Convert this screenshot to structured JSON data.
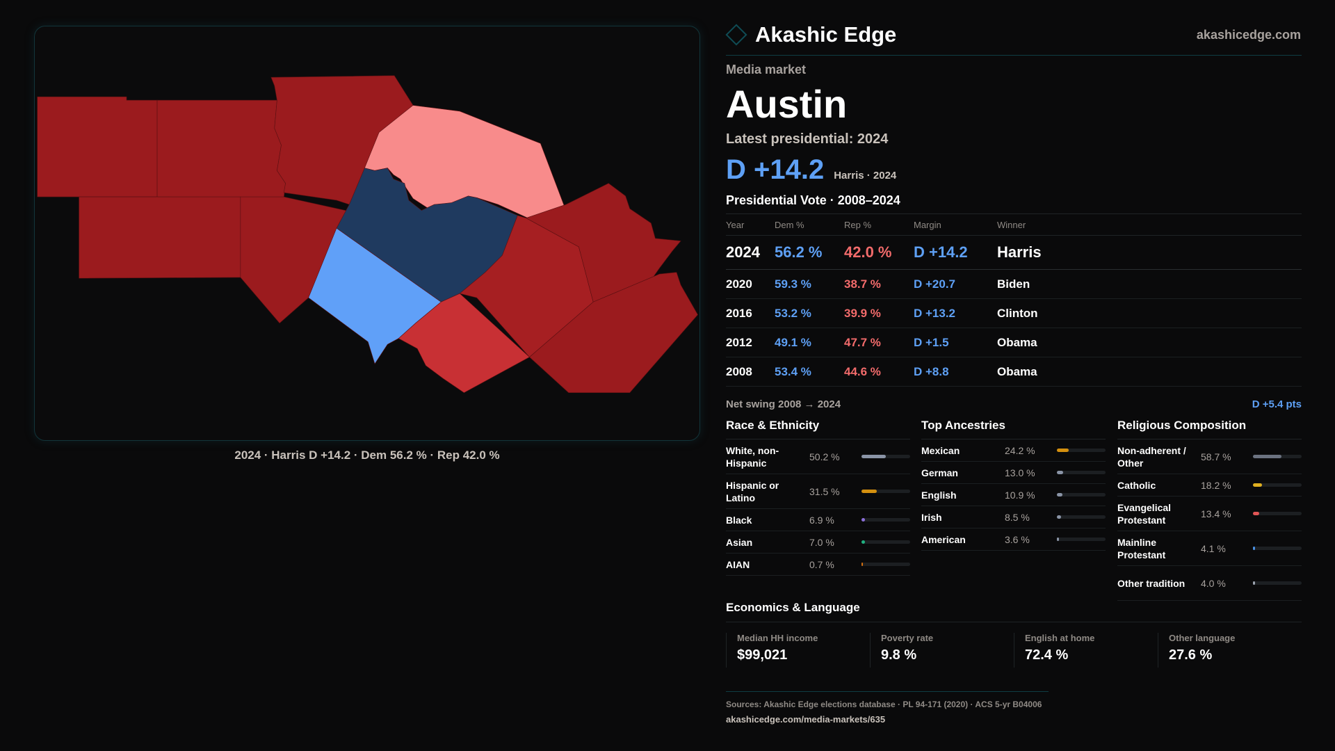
{
  "brand": {
    "name": "Akashic Edge",
    "site": "akashicedge.com",
    "logo_icon": "diamond-icon"
  },
  "header": {
    "kicker": "Media market",
    "title": "Austin",
    "latest": "Latest presidential: 2024",
    "margin": "D +14.2",
    "margin_sub": "Harris · 2024"
  },
  "map": {
    "caption": "2024 · Harris D +14.2 · Dem 56.2 % · Rep 42.0 %",
    "colors": {
      "safe_rep": "#9b1b1e",
      "likely_rep": "#a61f22",
      "lean_rep": "#c83034",
      "tilt_rep": "#f88b8b",
      "safe_dem": "#1f3a5f",
      "likely_dem": "#60a0f8"
    }
  },
  "vote": {
    "title": "Presidential Vote · 2008–2024",
    "columns": [
      "Year",
      "Dem %",
      "Rep %",
      "Margin",
      "Winner"
    ],
    "rows": [
      [
        "2024",
        "56.2 %",
        "42.0 %",
        "D +14.2",
        "Harris"
      ],
      [
        "2020",
        "59.3 %",
        "38.7 %",
        "D +20.7",
        "Biden"
      ],
      [
        "2016",
        "53.2 %",
        "39.9 %",
        "D +13.2",
        "Clinton"
      ],
      [
        "2012",
        "49.1 %",
        "47.7 %",
        "D +1.5",
        "Obama"
      ],
      [
        "2008",
        "53.4 %",
        "44.6 %",
        "D +8.8",
        "Obama"
      ]
    ],
    "swing_label": "Net swing 2008 → 2024",
    "swing_value": "D +5.4 pts"
  },
  "race": {
    "title": "Race & Ethnicity",
    "items": [
      {
        "label": "White, non-Hispanic",
        "pct": "50.2 %",
        "value": 50.2,
        "color": "#8a94a6"
      },
      {
        "label": "Hispanic or Latino",
        "pct": "31.5 %",
        "value": 31.5,
        "color": "#d4900f"
      },
      {
        "label": "Black",
        "pct": "6.9 %",
        "value": 6.9,
        "color": "#8b6fd8"
      },
      {
        "label": "Asian",
        "pct": "7.0 %",
        "value": 7.0,
        "color": "#20b080"
      },
      {
        "label": "AIAN",
        "pct": "0.7 %",
        "value": 0.7,
        "color": "#d4700f"
      }
    ]
  },
  "ancestry": {
    "title": "Top Ancestries",
    "items": [
      {
        "label": "Mexican",
        "pct": "24.2 %",
        "value": 24.2,
        "color": "#d4900f"
      },
      {
        "label": "German",
        "pct": "13.0 %",
        "value": 13.0,
        "color": "#8a94a6"
      },
      {
        "label": "English",
        "pct": "10.9 %",
        "value": 10.9,
        "color": "#8a94a6"
      },
      {
        "label": "Irish",
        "pct": "8.5 %",
        "value": 8.5,
        "color": "#8a94a6"
      },
      {
        "label": "American",
        "pct": "3.6 %",
        "value": 3.6,
        "color": "#8a94a6"
      }
    ]
  },
  "religion": {
    "title": "Religious Composition",
    "items": [
      {
        "label": "Non-adherent / Other",
        "pct": "58.7 %",
        "value": 58.7,
        "color": "#6b7280"
      },
      {
        "label": "Catholic",
        "pct": "18.2 %",
        "value": 18.2,
        "color": "#e0b020"
      },
      {
        "label": "Evangelical Protestant",
        "pct": "13.4 %",
        "value": 13.4,
        "color": "#e05555"
      },
      {
        "label": "Mainline Protestant",
        "pct": "4.1 %",
        "value": 4.1,
        "color": "#4a90e2"
      },
      {
        "label": "Other tradition",
        "pct": "4.0 %",
        "value": 4.0,
        "color": "#9ca3af"
      }
    ]
  },
  "econ": {
    "title": "Economics & Language",
    "stats": [
      {
        "label": "Median HH income",
        "value": "$99,021"
      },
      {
        "label": "Poverty rate",
        "value": "9.8 %"
      },
      {
        "label": "English at home",
        "value": "72.4 %"
      },
      {
        "label": "Other language",
        "value": "27.6 %"
      }
    ]
  },
  "footer": {
    "sources": "Sources: Akashic Edge elections database · PL 94-171 (2020) · ACS 5-yr B04006",
    "url": "akashicedge.com/media-markets/635"
  }
}
